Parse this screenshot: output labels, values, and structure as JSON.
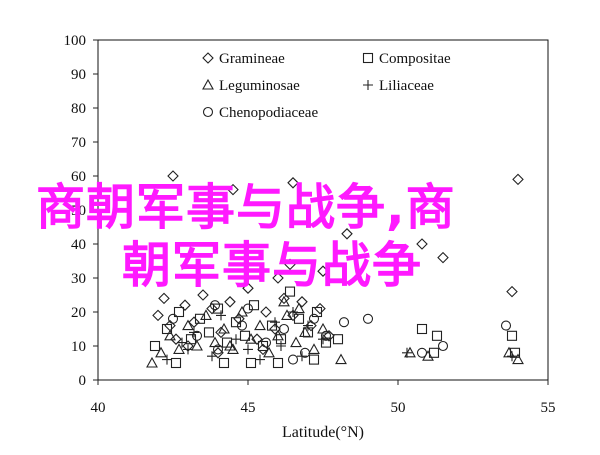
{
  "overlay_text": {
    "line1": "商朝军事与战争,商",
    "line2": "朝军事与战争"
  },
  "chart_data": {
    "type": "scatter",
    "xlabel": "Latitude(°N)",
    "ylabel": "",
    "xlim": [
      40,
      55
    ],
    "ylim": [
      0,
      100
    ],
    "x_ticks": [
      "40",
      "45",
      "50",
      "55"
    ],
    "y_ticks": [
      "0",
      "10",
      "20",
      "30",
      "40",
      "50",
      "60",
      "70",
      "80",
      "90",
      "100"
    ],
    "grid": false,
    "legend_position": "top-left (two columns)",
    "colors": {
      "ink": "#222222",
      "overlay": "#ff19ff"
    },
    "series": [
      {
        "name": "Gramineae",
        "marker": "diamond",
        "points": [
          [
            42.0,
            19
          ],
          [
            42.2,
            24
          ],
          [
            42.4,
            16
          ],
          [
            42.6,
            12
          ],
          [
            42.9,
            22
          ],
          [
            43.2,
            17
          ],
          [
            43.5,
            25
          ],
          [
            43.8,
            21
          ],
          [
            44.1,
            14
          ],
          [
            44.4,
            23
          ],
          [
            44.7,
            18
          ],
          [
            45.0,
            27
          ],
          [
            45.3,
            12
          ],
          [
            45.6,
            20
          ],
          [
            45.9,
            15
          ],
          [
            46.2,
            24
          ],
          [
            46.5,
            19
          ],
          [
            46.8,
            23
          ],
          [
            47.1,
            16
          ],
          [
            47.4,
            21
          ],
          [
            47.7,
            13
          ],
          [
            43.0,
            10
          ],
          [
            44.0,
            8
          ],
          [
            45.5,
            9
          ],
          [
            46.0,
            30
          ],
          [
            46.4,
            34
          ],
          [
            47.5,
            32
          ],
          [
            42.5,
            60
          ],
          [
            44.5,
            56
          ],
          [
            46.5,
            58
          ],
          [
            48.3,
            43
          ],
          [
            50.8,
            40
          ],
          [
            54.0,
            59
          ],
          [
            53.8,
            26
          ],
          [
            51.5,
            36
          ]
        ]
      },
      {
        "name": "Compositae",
        "marker": "square",
        "points": [
          [
            41.9,
            10
          ],
          [
            42.3,
            15
          ],
          [
            42.7,
            20
          ],
          [
            43.1,
            12
          ],
          [
            43.4,
            18
          ],
          [
            43.7,
            14
          ],
          [
            44.0,
            21
          ],
          [
            44.3,
            11
          ],
          [
            44.6,
            17
          ],
          [
            44.9,
            13
          ],
          [
            45.2,
            22
          ],
          [
            45.5,
            10
          ],
          [
            45.8,
            16
          ],
          [
            46.1,
            12
          ],
          [
            46.4,
            26
          ],
          [
            46.7,
            18
          ],
          [
            47.0,
            14
          ],
          [
            47.3,
            20
          ],
          [
            47.6,
            11
          ],
          [
            48.0,
            12
          ],
          [
            42.6,
            5
          ],
          [
            44.2,
            5
          ],
          [
            45.1,
            5
          ],
          [
            46.0,
            5
          ],
          [
            47.2,
            6
          ],
          [
            50.8,
            15
          ],
          [
            51.3,
            13
          ],
          [
            51.2,
            8
          ],
          [
            53.8,
            13
          ],
          [
            53.9,
            8
          ]
        ]
      },
      {
        "name": "Leguminosae",
        "marker": "triangle",
        "points": [
          [
            41.8,
            5
          ],
          [
            42.1,
            8
          ],
          [
            42.4,
            13
          ],
          [
            42.7,
            9
          ],
          [
            43.0,
            16
          ],
          [
            43.3,
            10
          ],
          [
            43.6,
            19
          ],
          [
            43.9,
            11
          ],
          [
            44.2,
            15
          ],
          [
            44.5,
            9
          ],
          [
            44.8,
            20
          ],
          [
            45.1,
            12
          ],
          [
            45.4,
            16
          ],
          [
            45.7,
            8
          ],
          [
            46.0,
            13
          ],
          [
            46.3,
            19
          ],
          [
            46.6,
            11
          ],
          [
            46.9,
            14
          ],
          [
            47.2,
            9
          ],
          [
            47.5,
            15
          ],
          [
            48.1,
            6
          ],
          [
            50.4,
            8
          ],
          [
            51.0,
            7
          ],
          [
            53.7,
            8
          ],
          [
            54.0,
            6
          ],
          [
            46.2,
            23
          ],
          [
            46.7,
            21
          ],
          [
            44.4,
            10
          ]
        ]
      },
      {
        "name": "Liliaceae",
        "marker": "plus",
        "points": [
          [
            42.3,
            6
          ],
          [
            43.0,
            9
          ],
          [
            43.8,
            7
          ],
          [
            44.6,
            12
          ],
          [
            45.4,
            6
          ],
          [
            46.1,
            10
          ],
          [
            46.8,
            7
          ],
          [
            47.5,
            12
          ],
          [
            45.9,
            17
          ],
          [
            44.1,
            19
          ],
          [
            46.5,
            20
          ],
          [
            43.2,
            14
          ],
          [
            47.0,
            16
          ],
          [
            42.8,
            11
          ],
          [
            45.0,
            9
          ],
          [
            50.3,
            8
          ],
          [
            53.8,
            7
          ]
        ]
      },
      {
        "name": "Chenopodiaceae",
        "marker": "circle",
        "points": [
          [
            42.5,
            18
          ],
          [
            43.3,
            13
          ],
          [
            44.0,
            9
          ],
          [
            44.8,
            16
          ],
          [
            45.6,
            11
          ],
          [
            46.2,
            15
          ],
          [
            46.9,
            8
          ],
          [
            47.6,
            13
          ],
          [
            48.2,
            17
          ],
          [
            45.0,
            21
          ],
          [
            46.5,
            6
          ],
          [
            43.9,
            22
          ],
          [
            49.0,
            18
          ],
          [
            50.8,
            8
          ],
          [
            53.6,
            16
          ],
          [
            51.5,
            10
          ],
          [
            47.2,
            18
          ]
        ]
      }
    ]
  }
}
